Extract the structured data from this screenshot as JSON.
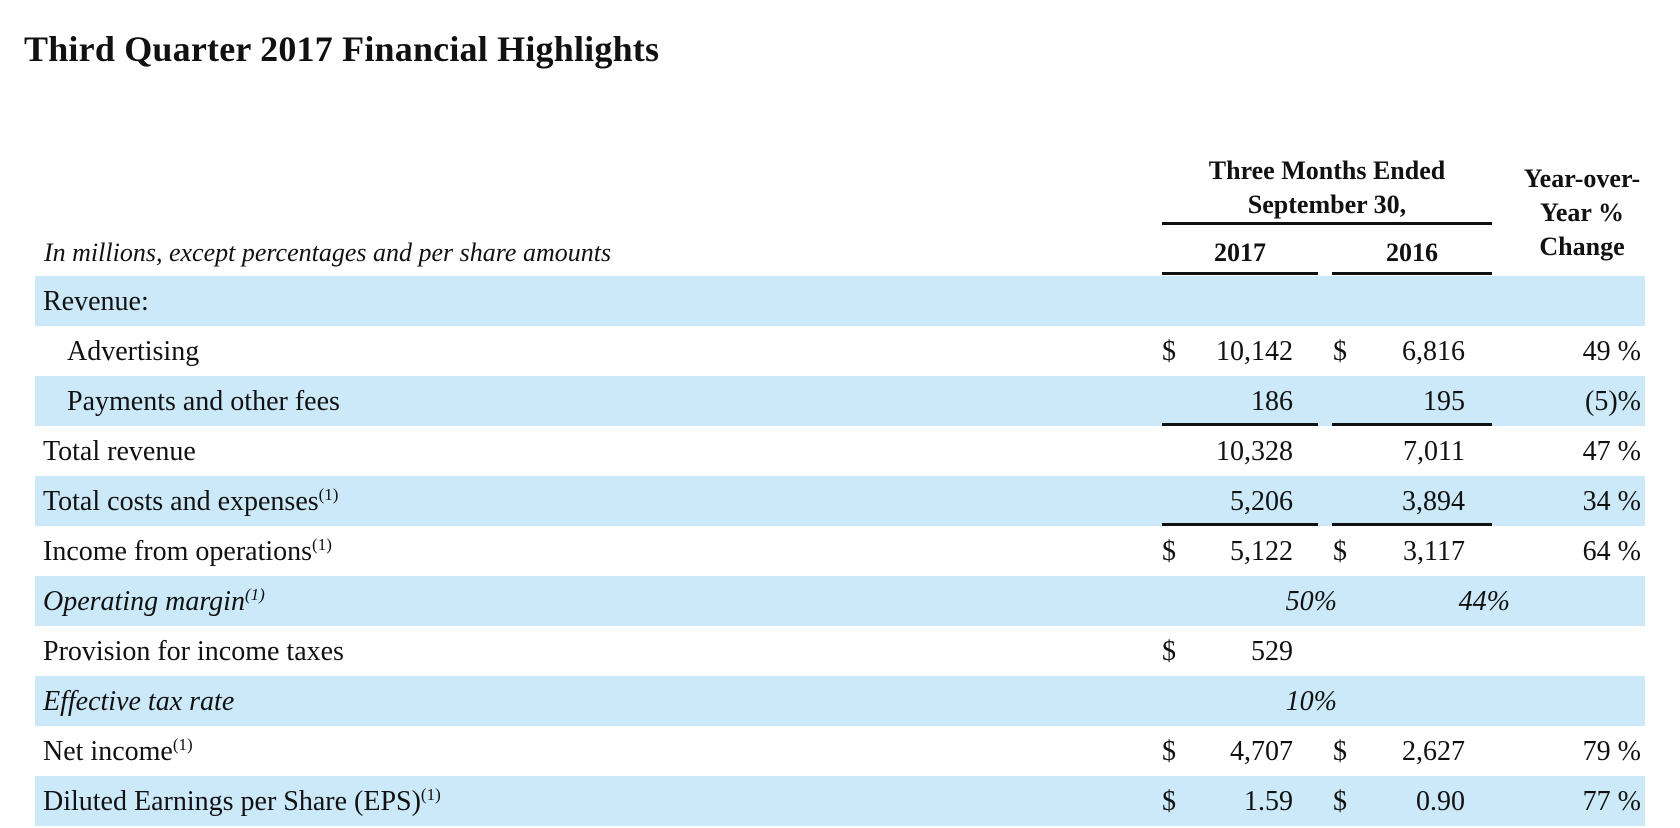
{
  "title": "Third Quarter 2017 Financial Highlights",
  "units_note": "In millions, except percentages and per share amounts",
  "header": {
    "period_line1": "Three Months Ended",
    "period_line2": "September 30,",
    "col_2017": "2017",
    "col_2016": "2016",
    "yoy_line1": "Year-over-",
    "yoy_line2": "Year %",
    "yoy_line3": "Change"
  },
  "footnote_marker": "(1)",
  "currency": "$",
  "colors": {
    "row_shade": "#cbe9f8",
    "rule": "#111111"
  },
  "rows": [
    {
      "label": "Revenue:"
    },
    {
      "label": "Advertising",
      "v2017": "10,142",
      "v2016": "6,816",
      "yoy": "49 %"
    },
    {
      "label": "Payments and other fees",
      "v2017": "186",
      "v2016": "195",
      "yoy": "(5)%"
    },
    {
      "label": "Total revenue",
      "v2017": "10,328",
      "v2016": "7,011",
      "yoy": "47 %"
    },
    {
      "label": "Total costs and expenses",
      "v2017": "5,206",
      "v2016": "3,894",
      "yoy": "34 %"
    },
    {
      "label": "Income from operations",
      "v2017": "5,122",
      "v2016": "3,117",
      "yoy": "64 %"
    },
    {
      "label": "Operating margin",
      "v2017": "50%",
      "v2016": "44%"
    },
    {
      "label": "Provision for income taxes",
      "v2017": "529"
    },
    {
      "label": "Effective tax rate",
      "v2017": "10%"
    },
    {
      "label": "Net income",
      "v2017": "4,707",
      "v2016": "2,627",
      "yoy": "79 %"
    },
    {
      "label": "Diluted Earnings per Share (EPS)",
      "v2017": "1.59",
      "v2016": "0.90",
      "yoy": "77 %"
    }
  ]
}
